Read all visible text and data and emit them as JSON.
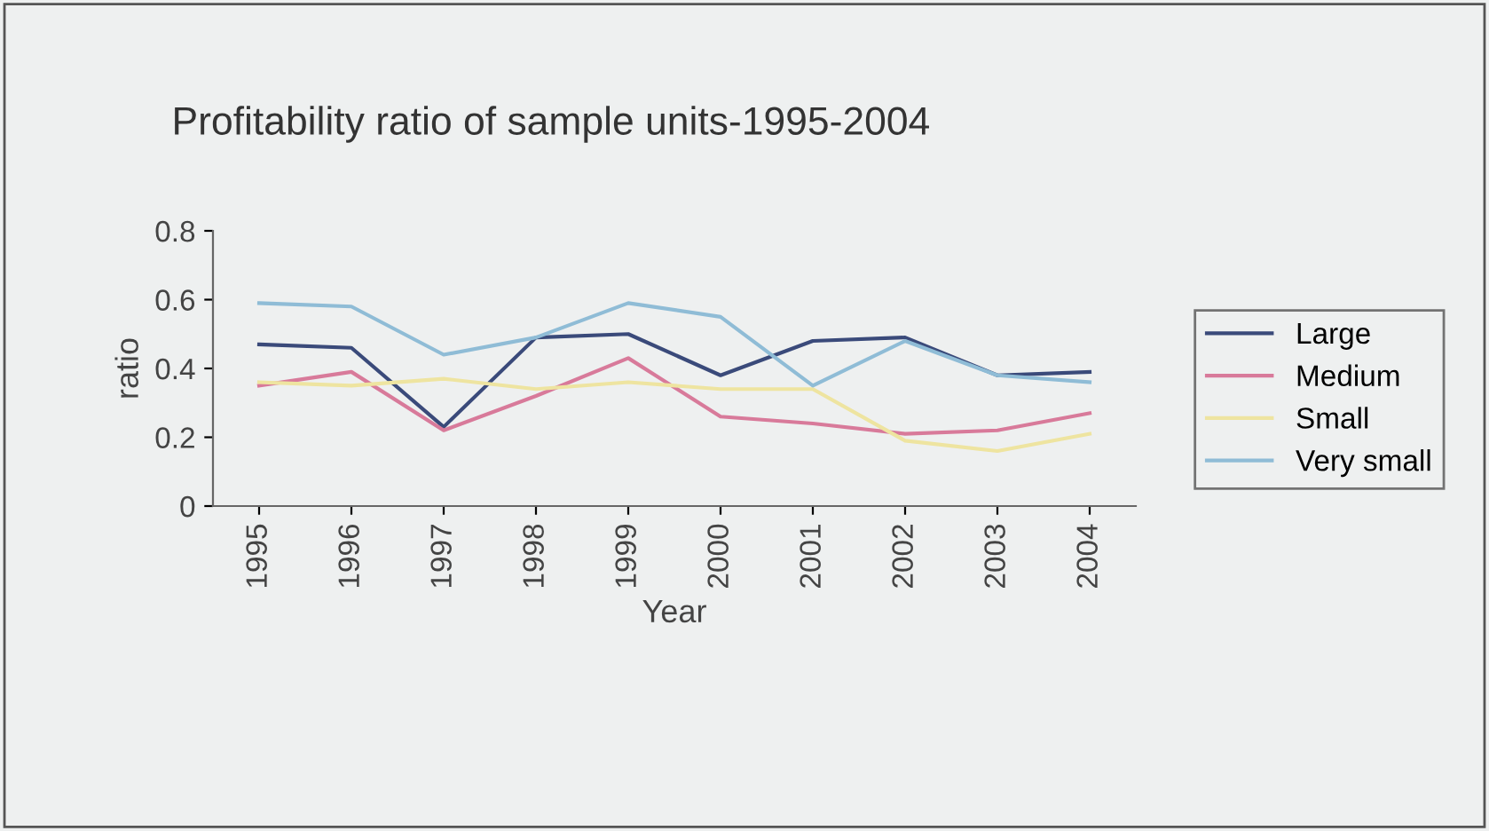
{
  "chart_data": {
    "type": "line",
    "title": "Profitability ratio of sample units-1995-2004",
    "xlabel": "Year",
    "ylabel": "ratio",
    "categories": [
      "1995",
      "1996",
      "1997",
      "1998",
      "1999",
      "2000",
      "2001",
      "2002",
      "2003",
      "2004"
    ],
    "series": [
      {
        "name": "Large",
        "color": "#3a4a7a",
        "values": [
          0.47,
          0.46,
          0.23,
          0.49,
          0.5,
          0.38,
          0.48,
          0.49,
          0.38,
          0.39
        ]
      },
      {
        "name": "Medium",
        "color": "#d87a9a",
        "values": [
          0.35,
          0.39,
          0.22,
          0.32,
          0.43,
          0.26,
          0.24,
          0.21,
          0.22,
          0.27
        ]
      },
      {
        "name": "Small",
        "color": "#eee4a0",
        "values": [
          0.36,
          0.35,
          0.37,
          0.34,
          0.36,
          0.34,
          0.34,
          0.19,
          0.16,
          0.21
        ]
      },
      {
        "name": "Very small",
        "color": "#8fbcd6",
        "values": [
          0.59,
          0.58,
          0.44,
          0.49,
          0.59,
          0.55,
          0.35,
          0.48,
          0.38,
          0.36
        ]
      }
    ],
    "ylim": [
      0,
      0.8
    ],
    "yticks": [
      {
        "value": 0,
        "label": "0"
      },
      0.2,
      0.4,
      0.6,
      0.8
    ],
    "grid": false,
    "legend": "right",
    "marker": "none",
    "line_style": "solid"
  }
}
